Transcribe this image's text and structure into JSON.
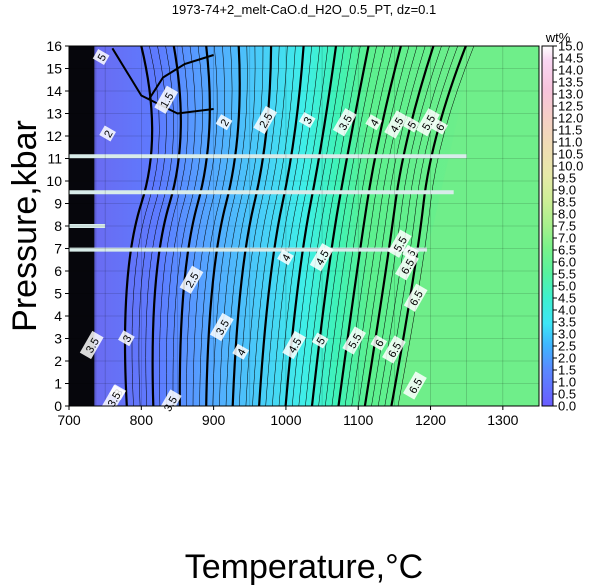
{
  "chart_data": {
    "type": "heatmap",
    "title": "1973-74+2_melt-CaO.d_H2O_0.5_PT, dz=0.1",
    "xlabel": "Temperature,°C",
    "ylabel": "Pressure,kbar",
    "xlim": [
      700,
      1350
    ],
    "ylim": [
      0,
      16
    ],
    "x_ticks": [
      700,
      800,
      900,
      1000,
      1100,
      1200,
      1300
    ],
    "y_ticks": [
      0,
      1,
      2,
      3,
      4,
      5,
      6,
      7,
      8,
      9,
      10,
      11,
      12,
      13,
      14,
      15,
      16
    ],
    "grid": true,
    "colorbar": {
      "label": "wt%",
      "min": 0.0,
      "max": 15.0,
      "ticks": [
        "0.0",
        "0.5",
        "1.0",
        "1.5",
        "2.0",
        "2.5",
        "3.0",
        "3.5",
        "4.0",
        "4.5",
        "5.0",
        "5.5",
        "6.0",
        "6.5",
        "7.0",
        "7.5",
        "8.0",
        "8.5",
        "9.0",
        "9.5",
        "10.0",
        "10.5",
        "11.0",
        "11.5",
        "12.0",
        "12.5",
        "13.0",
        "13.5",
        "14.0",
        "14.5",
        "15.0"
      ],
      "colors": [
        "#6a5cff",
        "#5a88ff",
        "#3fb6ff",
        "#3ee6f6",
        "#3ef0cf",
        "#58f29e",
        "#7af28a",
        "#9cf08a",
        "#b8ef8e",
        "#d4ee9a",
        "#e6e9a8",
        "#f0dcb4",
        "#f6cfc6",
        "#f7c3dc",
        "#f6c6ef",
        "#ffffff"
      ]
    },
    "background_value_color": "#6fee8a",
    "contour_labels": [
      {
        "text": "1.5",
        "x": 835,
        "y": 13.6
      },
      {
        "text": "2",
        "x": 915,
        "y": 12.6
      },
      {
        "text": "2.5",
        "x": 972,
        "y": 12.7
      },
      {
        "text": "3",
        "x": 1030,
        "y": 12.7
      },
      {
        "text": "3.5",
        "x": 1082,
        "y": 12.6
      },
      {
        "text": "4",
        "x": 1122,
        "y": 12.6
      },
      {
        "text": "4.5",
        "x": 1153,
        "y": 12.5
      },
      {
        "text": "5",
        "x": 1174,
        "y": 12.5
      },
      {
        "text": "5.5",
        "x": 1197,
        "y": 12.6
      },
      {
        "text": "6",
        "x": 1213,
        "y": 12.4
      },
      {
        "text": "2.5",
        "x": 870,
        "y": 5.6
      },
      {
        "text": "3.5",
        "x": 912,
        "y": 3.5
      },
      {
        "text": "4",
        "x": 938,
        "y": 2.4
      },
      {
        "text": "4.5",
        "x": 1012,
        "y": 2.7
      },
      {
        "text": "5",
        "x": 1048,
        "y": 2.9
      },
      {
        "text": "5.5",
        "x": 1095,
        "y": 2.9
      },
      {
        "text": "6",
        "x": 1129,
        "y": 2.8
      },
      {
        "text": "6.5",
        "x": 1150,
        "y": 2.5
      },
      {
        "text": "4",
        "x": 1000,
        "y": 6.6
      },
      {
        "text": "4.5",
        "x": 1050,
        "y": 6.6
      },
      {
        "text": "5.5",
        "x": 1158,
        "y": 7.2
      },
      {
        "text": "6",
        "x": 1173,
        "y": 6.8
      },
      {
        "text": "6.5",
        "x": 1168,
        "y": 6.2
      },
      {
        "text": "6.5",
        "x": 1180,
        "y": 4.8
      },
      {
        "text": "6.5",
        "x": 1179,
        "y": 0.9
      },
      {
        "text": "3",
        "x": 780,
        "y": 3.0
      },
      {
        "text": "3",
        "x": 768,
        "y": 0.6
      },
      {
        "text": "3.5",
        "x": 762,
        "y": 0.3
      },
      {
        "text": "3.5",
        "x": 840,
        "y": 0.1
      },
      {
        "text": "3.5",
        "x": 732,
        "y": 2.7
      },
      {
        "text": "5",
        "x": 745,
        "y": 15.5
      },
      {
        "text": "2",
        "x": 754,
        "y": 12.1
      }
    ]
  }
}
